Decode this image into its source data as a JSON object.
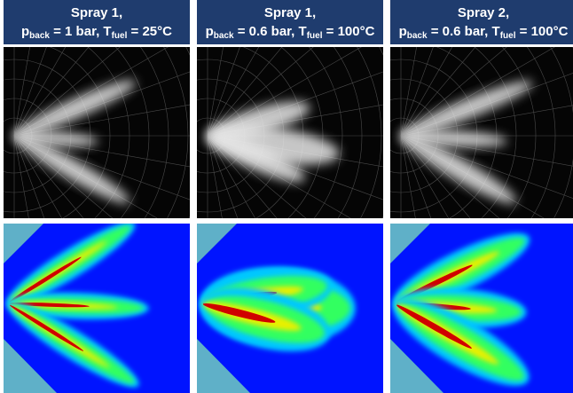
{
  "panels": [
    {
      "title": "Spray 1,",
      "condition": [
        {
          "symbol": "p",
          "sub": "back",
          "text": " = 1 bar, "
        },
        {
          "symbol": "T",
          "sub": "fuel",
          "text": " = 25°C"
        }
      ]
    },
    {
      "title": "Spray 1,",
      "condition": [
        {
          "symbol": "p",
          "sub": "back",
          "text": " = 0.6 bar, "
        },
        {
          "symbol": "T",
          "sub": "fuel",
          "text": " = 100°C"
        }
      ]
    },
    {
      "title": "Spray 2,",
      "condition": [
        {
          "symbol": "p",
          "sub": "back",
          "text": " = 0.6 bar, "
        },
        {
          "symbol": "T",
          "sub": "fuel",
          "text": " = 100°C"
        }
      ]
    }
  ]
}
